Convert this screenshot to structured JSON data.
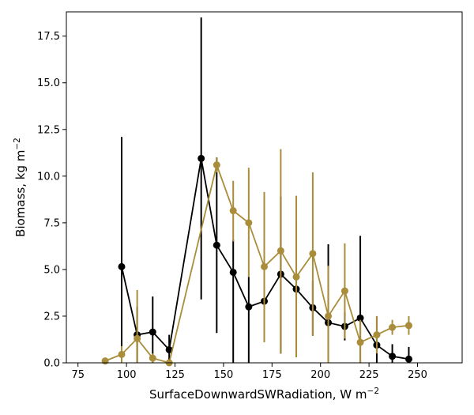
{
  "chart_data": {
    "type": "line",
    "xlabel": "SurfaceDownwardSWRadiation,  W m",
    "xlabel_sup": "−2",
    "ylabel": "Biomass,  kg m",
    "ylabel_sup": "−2",
    "xlim": [
      69,
      273
    ],
    "ylim": [
      0,
      18.8
    ],
    "xticks": [
      75,
      100,
      125,
      150,
      175,
      200,
      225,
      250
    ],
    "yticks": [
      0.0,
      2.5,
      5.0,
      7.5,
      10.0,
      12.5,
      15.0,
      17.5
    ],
    "xtick_labels": [
      "75",
      "100",
      "125",
      "150",
      "175",
      "200",
      "225",
      "250"
    ],
    "ytick_labels": [
      "0.0",
      "2.5",
      "5.0",
      "7.5",
      "10.0",
      "12.5",
      "15.0",
      "17.5"
    ],
    "grid": false,
    "series": [
      {
        "color": "#000000",
        "points": [
          {
            "x": 97.5,
            "y": 5.15,
            "lo": 0.0,
            "hi": 12.1
          },
          {
            "x": 105.5,
            "y": 1.5,
            "lo": 0.0,
            "hi": 3.0
          },
          {
            "x": 113.5,
            "y": 1.65,
            "lo": 0.0,
            "hi": 3.55
          },
          {
            "x": 122.0,
            "y": 0.7,
            "lo": 0.0,
            "hi": 1.5
          },
          {
            "x": 138.5,
            "y": 10.95,
            "lo": 3.4,
            "hi": 18.5
          },
          {
            "x": 146.5,
            "y": 6.3,
            "lo": 1.6,
            "hi": 11.0
          },
          {
            "x": 155.0,
            "y": 4.85,
            "lo": 0.0,
            "hi": 6.6
          },
          {
            "x": 163.0,
            "y": 3.0,
            "lo": 0.0,
            "hi": 4.6
          },
          {
            "x": 171.0,
            "y": 3.3,
            "lo": 1.1,
            "hi": 5.5
          },
          {
            "x": 179.5,
            "y": 4.75,
            "lo": 0.5,
            "hi": 8.9
          },
          {
            "x": 187.5,
            "y": 3.95,
            "lo": 0.3,
            "hi": 7.6
          },
          {
            "x": 196.0,
            "y": 2.95,
            "lo": 1.45,
            "hi": 4.4
          },
          {
            "x": 204.0,
            "y": 2.15,
            "lo": 0.0,
            "hi": 6.35
          },
          {
            "x": 212.5,
            "y": 1.95,
            "lo": 1.2,
            "hi": 2.7
          },
          {
            "x": 220.5,
            "y": 2.4,
            "lo": 0.0,
            "hi": 6.8
          },
          {
            "x": 229.0,
            "y": 0.95,
            "lo": 0.0,
            "hi": 2.5
          },
          {
            "x": 237.0,
            "y": 0.35,
            "lo": 0.0,
            "hi": 1.0
          },
          {
            "x": 245.5,
            "y": 0.2,
            "lo": 0.0,
            "hi": 0.85
          }
        ]
      },
      {
        "color": "#a98d3a",
        "points": [
          {
            "x": 89.0,
            "y": 0.1,
            "lo": 0.0,
            "hi": 0.2
          },
          {
            "x": 97.5,
            "y": 0.45,
            "lo": 0.0,
            "hi": 0.9
          },
          {
            "x": 105.5,
            "y": 1.3,
            "lo": 0.0,
            "hi": 3.9
          },
          {
            "x": 113.5,
            "y": 0.25,
            "lo": 0.0,
            "hi": 0.5
          },
          {
            "x": 122.0,
            "y": 0.0,
            "lo": 0.0,
            "hi": 0.0
          },
          {
            "x": 146.5,
            "y": 10.6,
            "lo": 10.2,
            "hi": 11.0
          },
          {
            "x": 155.0,
            "y": 8.15,
            "lo": 6.5,
            "hi": 9.75
          },
          {
            "x": 163.0,
            "y": 7.5,
            "lo": 4.6,
            "hi": 10.45
          },
          {
            "x": 171.0,
            "y": 5.15,
            "lo": 1.1,
            "hi": 9.15
          },
          {
            "x": 179.5,
            "y": 6.0,
            "lo": 0.5,
            "hi": 11.45
          },
          {
            "x": 187.5,
            "y": 4.6,
            "lo": 0.3,
            "hi": 8.95
          },
          {
            "x": 196.0,
            "y": 5.85,
            "lo": 1.45,
            "hi": 10.2
          },
          {
            "x": 204.0,
            "y": 2.5,
            "lo": 0.0,
            "hi": 5.2
          },
          {
            "x": 212.5,
            "y": 3.85,
            "lo": 1.3,
            "hi": 6.4
          },
          {
            "x": 220.5,
            "y": 1.1,
            "lo": 0.0,
            "hi": 2.3
          },
          {
            "x": 229.0,
            "y": 1.5,
            "lo": 0.5,
            "hi": 2.5
          },
          {
            "x": 237.0,
            "y": 1.9,
            "lo": 1.5,
            "hi": 2.3
          },
          {
            "x": 245.5,
            "y": 2.0,
            "lo": 1.5,
            "hi": 2.5
          }
        ]
      }
    ]
  }
}
